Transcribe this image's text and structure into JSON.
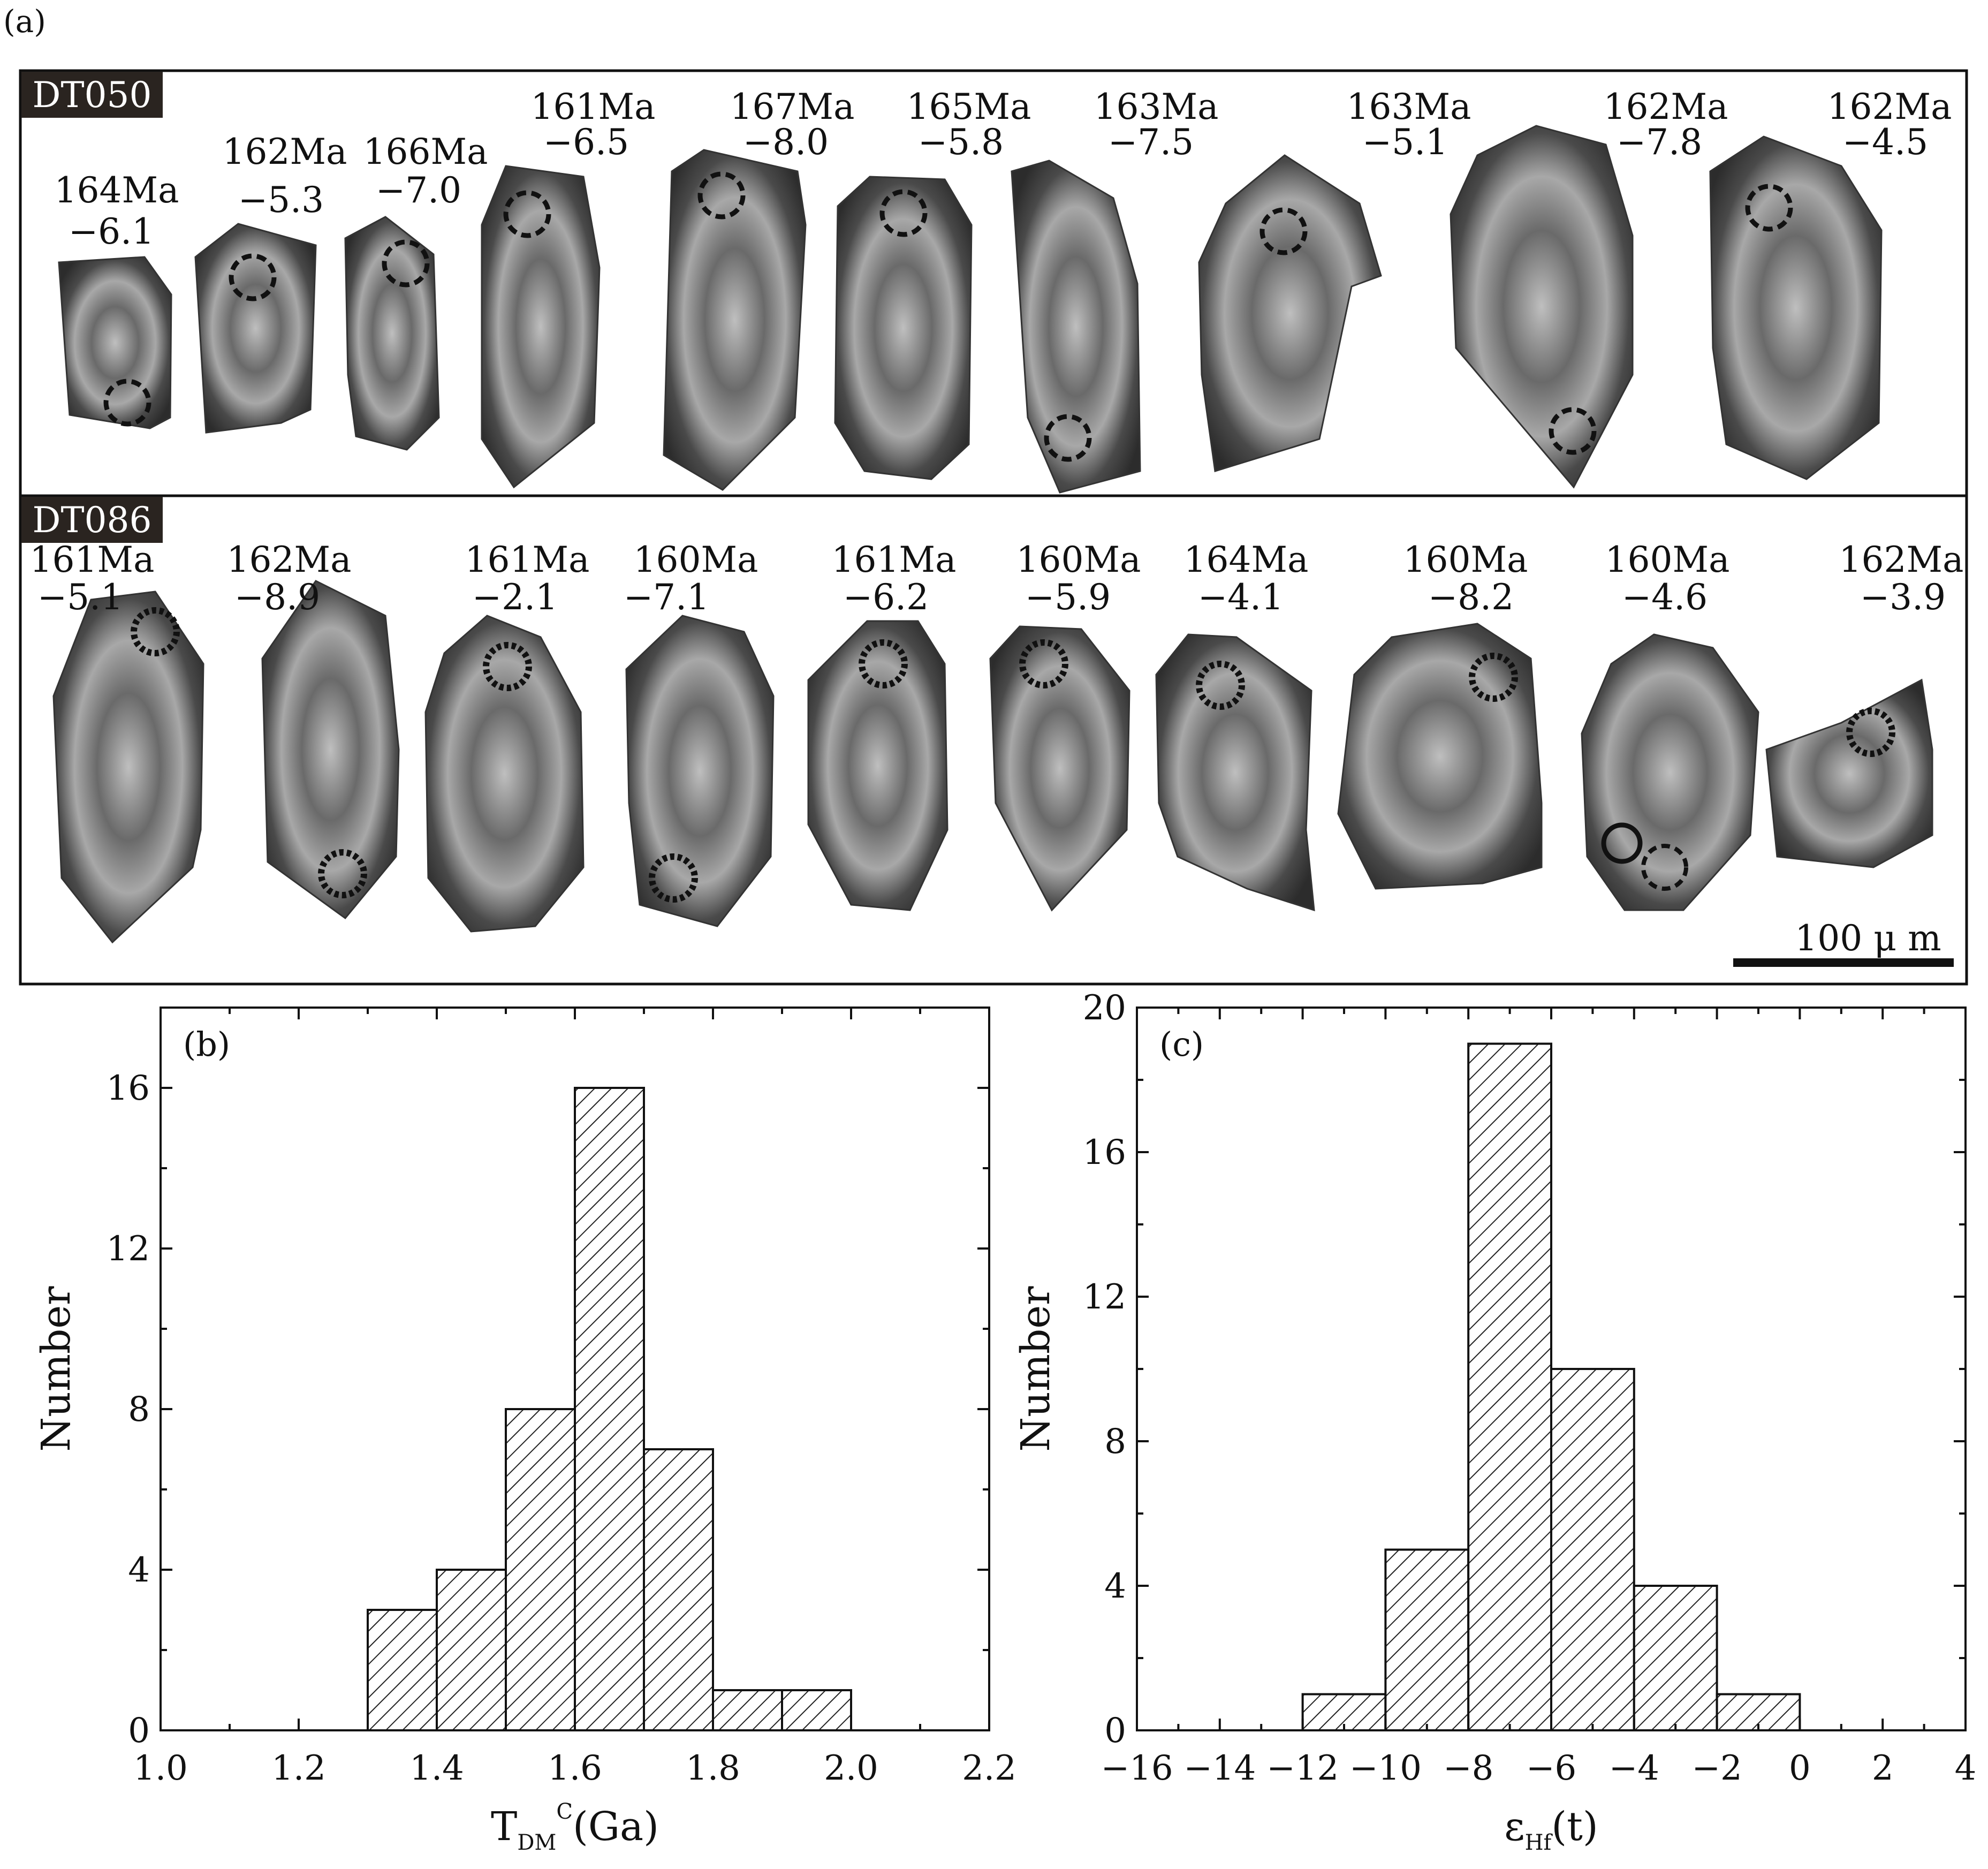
{
  "panel_a": {
    "label": "(a)",
    "scale_bar": "100 μ m",
    "rows": [
      {
        "sample": "DT050",
        "grains": [
          {
            "age": "164Ma",
            "ehf": "−6.1"
          },
          {
            "age": "162Ma",
            "ehf": "−5.3"
          },
          {
            "age": "166Ma",
            "ehf": "−7.0"
          },
          {
            "age": "161Ma",
            "ehf": "−6.5"
          },
          {
            "age": "167Ma",
            "ehf": "−8.0"
          },
          {
            "age": "165Ma",
            "ehf": "−5.8"
          },
          {
            "age": "163Ma",
            "ehf": "−7.5"
          },
          {
            "age": "163Ma",
            "ehf": "−5.1"
          },
          {
            "age": "162Ma",
            "ehf": "−7.8"
          },
          {
            "age": "162Ma",
            "ehf": "−4.5"
          }
        ]
      },
      {
        "sample": "DT086",
        "grains": [
          {
            "age": "161Ma",
            "ehf": "−5.1"
          },
          {
            "age": "162Ma",
            "ehf": "−8.9"
          },
          {
            "age": "161Ma",
            "ehf": "−2.1"
          },
          {
            "age": "160Ma",
            "ehf": "−7.1"
          },
          {
            "age": "161Ma",
            "ehf": "−6.2"
          },
          {
            "age": "160Ma",
            "ehf": "−5.9"
          },
          {
            "age": "164Ma",
            "ehf": "−4.1"
          },
          {
            "age": "160Ma",
            "ehf": "−8.2"
          },
          {
            "age": "160Ma",
            "ehf": "−4.6"
          },
          {
            "age": "162Ma",
            "ehf": "−3.9"
          }
        ]
      }
    ]
  },
  "chart_data": [
    {
      "type": "bar",
      "panel": "(b)",
      "xlabel": "T",
      "xlabel_sub": "DM",
      "xlabel_sup": "C",
      "xlabel_tail": "(Ga)",
      "ylabel": "Number",
      "bins": [
        {
          "from": 1.3,
          "to": 1.4,
          "count": 3
        },
        {
          "from": 1.4,
          "to": 1.5,
          "count": 4
        },
        {
          "from": 1.5,
          "to": 1.6,
          "count": 8
        },
        {
          "from": 1.6,
          "to": 1.7,
          "count": 16
        },
        {
          "from": 1.7,
          "to": 1.8,
          "count": 7
        },
        {
          "from": 1.8,
          "to": 1.9,
          "count": 1
        },
        {
          "from": 1.9,
          "to": 2.0,
          "count": 1
        }
      ],
      "xlim": [
        1.0,
        2.2
      ],
      "ylim": [
        0,
        18
      ],
      "xticks": [
        "1.0",
        "1.2",
        "1.4",
        "1.6",
        "1.8",
        "2.0",
        "2.2"
      ],
      "yticks": [
        "0",
        "4",
        "8",
        "12",
        "16"
      ]
    },
    {
      "type": "bar",
      "panel": "(c)",
      "xlabel": "ε",
      "xlabel_sub": "Hf",
      "xlabel_tail": "(t)",
      "ylabel": "Number",
      "bins": [
        {
          "from": -12,
          "to": -10,
          "count": 1
        },
        {
          "from": -10,
          "to": -8,
          "count": 5
        },
        {
          "from": -8,
          "to": -6,
          "count": 19
        },
        {
          "from": -6,
          "to": -4,
          "count": 10
        },
        {
          "from": -4,
          "to": -2,
          "count": 4
        },
        {
          "from": -2,
          "to": 0,
          "count": 1
        }
      ],
      "xlim": [
        -16,
        4
      ],
      "ylim": [
        0,
        20
      ],
      "xticks": [
        "−16",
        "−14",
        "−12",
        "−10",
        "−8",
        "−6",
        "−4",
        "−2",
        "0",
        "2",
        "4"
      ],
      "yticks": [
        "0",
        "4",
        "8",
        "12",
        "16",
        "20"
      ]
    }
  ]
}
